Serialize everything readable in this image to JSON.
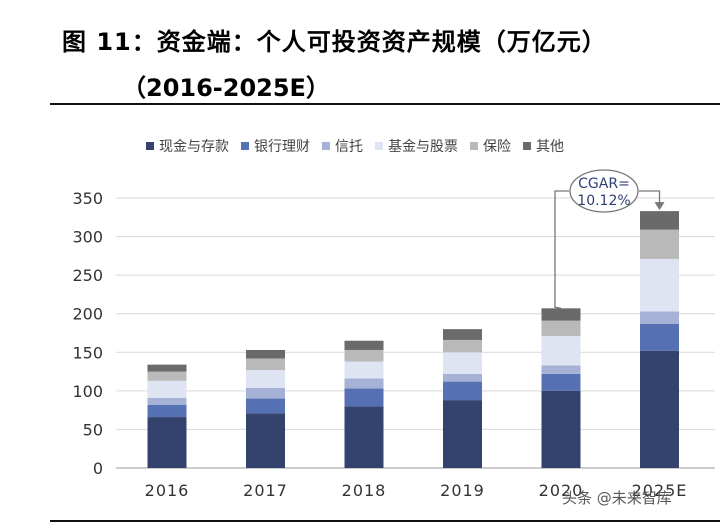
{
  "title": {
    "line1": "图 11：资金端：个人可投资资产规模（万亿元）",
    "line2": "（2016-2025E）"
  },
  "watermark": "头条 @未来智库",
  "chart_data": {
    "type": "bar",
    "stacked": true,
    "categories": [
      "2016",
      "2017",
      "2018",
      "2019",
      "2020",
      "2025E"
    ],
    "series": [
      {
        "name": "现金与存款",
        "color": "#34426e",
        "values": [
          66,
          71,
          80,
          88,
          100,
          152
        ]
      },
      {
        "name": "银行理财",
        "color": "#5670b4",
        "values": [
          16,
          19,
          23,
          24,
          22,
          35
        ]
      },
      {
        "name": "信托",
        "color": "#a5b2d6",
        "values": [
          9,
          14,
          13,
          10,
          11,
          16
        ]
      },
      {
        "name": "基金与股票",
        "color": "#dfe4f3",
        "values": [
          22,
          23,
          22,
          28,
          38,
          68
        ]
      },
      {
        "name": "保险",
        "color": "#b9b9b9",
        "values": [
          12,
          15,
          15,
          16,
          20,
          38
        ]
      },
      {
        "name": "其他",
        "color": "#6a6a6a",
        "values": [
          9,
          11,
          12,
          14,
          16,
          24
        ]
      }
    ],
    "ylim": [
      0,
      350
    ],
    "yticks": [
      0,
      50,
      100,
      150,
      200,
      250,
      300,
      350
    ],
    "grid": true,
    "legend_position": "top",
    "annotation": {
      "text_line1": "CGAR=",
      "text_line2": "10.12%"
    }
  }
}
